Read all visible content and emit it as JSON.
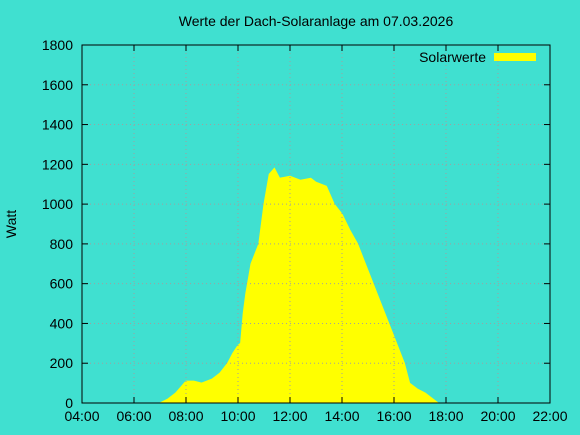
{
  "chart_data": {
    "type": "area",
    "title": "Werte der Dach-Solaranlage am 07.03.2026",
    "ylabel": "Watt",
    "x": [
      7.0,
      7.3,
      7.6,
      7.8,
      8.0,
      8.3,
      8.6,
      9.0,
      9.3,
      9.6,
      9.8,
      10.0,
      10.1,
      10.2,
      10.3,
      10.5,
      10.8,
      11.0,
      11.2,
      11.4,
      11.6,
      12.0,
      12.4,
      12.8,
      13.0,
      13.4,
      13.7,
      14.0,
      14.3,
      14.6,
      14.9,
      15.2,
      15.5,
      15.8,
      16.1,
      16.4,
      16.6,
      16.9,
      17.2,
      17.5,
      17.7
    ],
    "series": [
      {
        "name": "Solarwerte",
        "color": "#ffff00",
        "values": [
          0,
          20,
          50,
          80,
          110,
          110,
          100,
          120,
          150,
          200,
          250,
          290,
          300,
          450,
          550,
          700,
          800,
          1000,
          1150,
          1180,
          1130,
          1140,
          1120,
          1130,
          1110,
          1090,
          1000,
          950,
          870,
          800,
          700,
          600,
          500,
          400,
          300,
          200,
          100,
          70,
          50,
          20,
          0
        ]
      }
    ],
    "xlim": [
      4,
      22
    ],
    "xticks": [
      {
        "value": 4,
        "label": "04:00"
      },
      {
        "value": 6,
        "label": "06:00"
      },
      {
        "value": 8,
        "label": "08:00"
      },
      {
        "value": 10,
        "label": "10:00"
      },
      {
        "value": 12,
        "label": "12:00"
      },
      {
        "value": 14,
        "label": "14:00"
      },
      {
        "value": 16,
        "label": "16:00"
      },
      {
        "value": 18,
        "label": "18:00"
      },
      {
        "value": 20,
        "label": "20:00"
      },
      {
        "value": 22,
        "label": "22:00"
      }
    ],
    "ylim": [
      0,
      1800
    ],
    "yticks": [
      0,
      200,
      400,
      600,
      800,
      1000,
      1200,
      1400,
      1600,
      1800
    ],
    "grid": true,
    "legend": "upper right"
  }
}
